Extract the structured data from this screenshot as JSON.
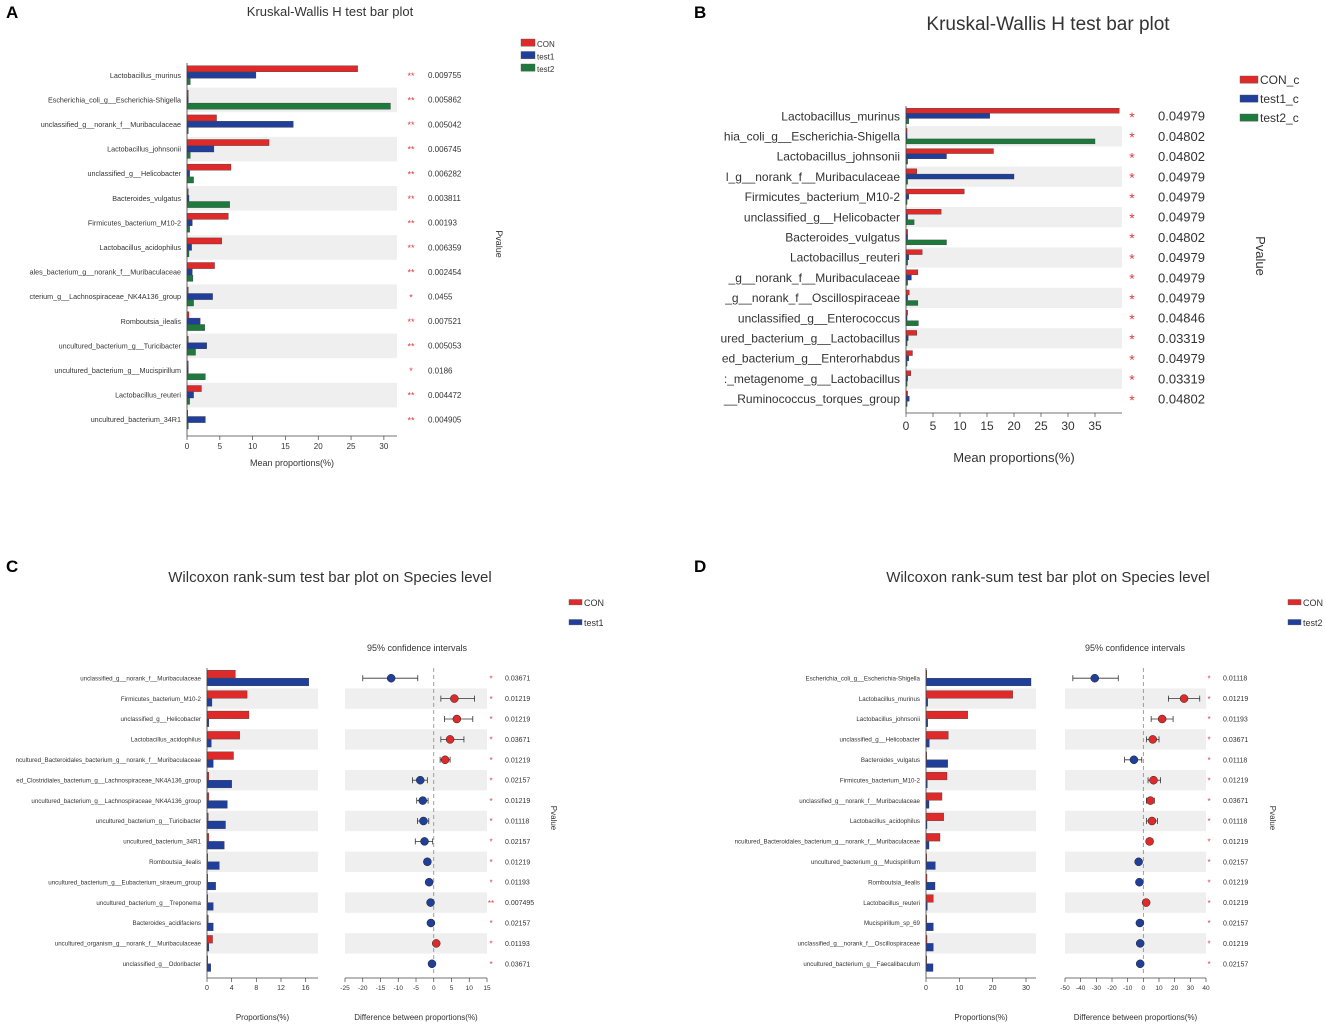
{
  "colors": {
    "CON": "#e02a2a",
    "test1": "#1f3f9a",
    "test2": "#1e7a3c",
    "stripe": "#efefef",
    "sig": "#e23a3a"
  },
  "chart_data": [
    {
      "panel": "A",
      "type": "bar",
      "title": "Kruskal-Wallis H test bar plot",
      "xlabel": "Mean proportions(%)",
      "pvalue_label": "Pvalue",
      "xlim": [
        0,
        32
      ],
      "xticks": [
        0,
        5,
        10,
        15,
        20,
        25,
        30
      ],
      "series_names": [
        "CON",
        "test1",
        "test2"
      ],
      "categories": [
        "Lactobacillus_murinus",
        "Escherichia_coli_g__Escherichia-Shigella",
        "unclassified_g__norank_f__Muribaculaceae",
        "Lactobacillus_johnsonii",
        "unclassified_g__Helicobacter",
        "Bacteroides_vulgatus",
        "Firmicutes_bacterium_M10-2",
        "Lactobacillus_acidophilus",
        "ales_bacterium_g__norank_f__Muribaculaceae",
        "cterium_g__Lachnospiraceae_NK4A136_group",
        "Romboutsia_ilealis",
        "uncultured_bacterium_g__Turicibacter",
        "uncultured_bacterium_g__Mucispirillum",
        "Lactobacillus_reuteri",
        "uncultured_bacterium_34R1"
      ],
      "series": [
        {
          "name": "CON",
          "values": [
            26,
            0.2,
            4.5,
            12.5,
            6.7,
            0.2,
            6.3,
            5.3,
            4.2,
            0.2,
            0.3,
            0.2,
            0.2,
            2.2,
            0.1
          ]
        },
        {
          "name": "test1",
          "values": [
            10.5,
            0.2,
            16.2,
            4.1,
            0.4,
            0.3,
            0.8,
            0.7,
            0.8,
            3.9,
            2.0,
            3.0,
            0.2,
            1.0,
            2.8
          ]
        },
        {
          "name": "test2",
          "values": [
            0.5,
            31,
            0.2,
            0.5,
            1.0,
            6.5,
            0.4,
            0.3,
            0.9,
            1.0,
            2.7,
            1.3,
            2.8,
            0.4,
            0.2
          ]
        }
      ],
      "sig": [
        "**",
        "**",
        "**",
        "**",
        "**",
        "**",
        "**",
        "**",
        "**",
        "*",
        "**",
        "**",
        "*",
        "**",
        "**"
      ],
      "pvalues": [
        "0.009755",
        "0.005862",
        "0.005042",
        "0.006745",
        "0.006282",
        "0.003811",
        "0.00193",
        "0.006359",
        "0.002454",
        "0.0455",
        "0.007521",
        "0.005053",
        "0.0186",
        "0.004472",
        "0.004905"
      ]
    },
    {
      "panel": "B",
      "type": "bar",
      "title": "Kruskal-Wallis H test bar plot",
      "xlabel": "Mean proportions(%)",
      "pvalue_label": "Pvalue",
      "xlim": [
        0,
        40
      ],
      "xticks": [
        0,
        5,
        10,
        15,
        20,
        25,
        30,
        35
      ],
      "series_names": [
        "CON_c",
        "test1_c",
        "test2_c"
      ],
      "categories": [
        "Lactobacillus_murinus",
        "hia_coli_g__Escherichia-Shigella",
        "Lactobacillus_johnsonii",
        "l_g__norank_f__Muribaculaceae",
        "Firmicutes_bacterium_M10-2",
        "unclassified_g__Helicobacter",
        "Bacteroides_vulgatus",
        "Lactobacillus_reuteri",
        "_g__norank_f__Muribaculaceae",
        "_g__norank_f__Oscillospiraceae",
        "unclassified_g__Enterococcus",
        "ured_bacterium_g__Lactobacillus",
        "ed_bacterium_g__Enterorhabdus",
        ":_metagenome_g__Lactobacillus",
        "__Ruminococcus_torques_group"
      ],
      "series": [
        {
          "name": "CON_c",
          "values": [
            39.5,
            0.2,
            16.2,
            2.0,
            10.8,
            6.5,
            0.3,
            3.0,
            2.2,
            0.6,
            0.3,
            2.0,
            1.2,
            0.9,
            0.3
          ]
        },
        {
          "name": "test1_c",
          "values": [
            15.5,
            0.2,
            7.5,
            20.0,
            0.5,
            0.3,
            0.3,
            0.5,
            1.0,
            0.3,
            0.2,
            0.4,
            0.5,
            0.3,
            0.6
          ]
        },
        {
          "name": "test2_c",
          "values": [
            0.5,
            35.0,
            0.3,
            0.3,
            0.2,
            1.5,
            7.5,
            0.3,
            0.3,
            2.2,
            2.3,
            0.2,
            0.2,
            0.2,
            0.2
          ]
        }
      ],
      "sig": [
        "*",
        "*",
        "*",
        "*",
        "*",
        "*",
        "*",
        "*",
        "*",
        "*",
        "*",
        "*",
        "*",
        "*",
        "*"
      ],
      "pvalues": [
        "0.04979",
        "0.04802",
        "0.04802",
        "0.04979",
        "0.04979",
        "0.04979",
        "0.04802",
        "0.04979",
        "0.04979",
        "0.04979",
        "0.04846",
        "0.03319",
        "0.04979",
        "0.03319",
        "0.04802"
      ]
    },
    {
      "panel": "C",
      "type": "bar",
      "title": "Wilcoxon rank-sum test bar plot on Species level",
      "xlabel": "Proportions(%)",
      "ci_title": "95% confidence intervals",
      "ci_xlabel": "Difference between proportions(%)",
      "pvalue_label": "Pvalue",
      "xlim": [
        0,
        18
      ],
      "xticks": [
        0,
        4,
        8,
        12,
        16
      ],
      "xtick_labels": [
        "0",
        "4",
        "8",
        "12",
        "16"
      ],
      "ci_xlim": [
        -25,
        15
      ],
      "ci_xticks": [
        -25,
        -20,
        -15,
        -10,
        -5,
        0,
        5,
        10,
        15
      ],
      "series_names": [
        "CON",
        "test1"
      ],
      "categories": [
        "unclassified_g__norank_f__Muribaculaceae",
        "Firmicutes_bacterium_M10-2",
        "unclassified_g__Helicobacter",
        "Lactobacillus_acidophilus",
        "ncultured_Bacteroidales_bacterium_g__norank_f__Muribaculaceae",
        "ed_Clostridiales_bacterium_g__Lachnospiraceae_NK4A136_group",
        "uncultured_bacterium_g__Lachnospiraceae_NK4A136_group",
        "uncultured_bacterium_g__Turicibacter",
        "uncultured_bacterium_34R1",
        "Romboutsia_ilealis",
        "uncultured_bacterium_g__Eubacterium_siraeum_group",
        "uncultured_bacterium_g__Treponema",
        "Bacteroides_acidifaciens",
        "uncultured_organism_g__norank_f__Muribaculaceae",
        "unclassified_g__Odoribacter"
      ],
      "series": [
        {
          "name": "CON",
          "values": [
            4.6,
            6.5,
            6.8,
            5.3,
            4.3,
            0.3,
            0.3,
            0.2,
            0.3,
            0.1,
            0.1,
            0.1,
            0.2,
            0.9,
            0.1
          ]
        },
        {
          "name": "test1",
          "values": [
            16.5,
            0.8,
            0.3,
            0.7,
            1.0,
            4.0,
            3.3,
            3.0,
            2.8,
            2.0,
            1.4,
            1.0,
            1.0,
            0.3,
            0.6
          ]
        }
      ],
      "diff": [
        -12.0,
        5.8,
        6.5,
        4.6,
        3.2,
        -3.8,
        -3.1,
        -2.9,
        -2.6,
        -1.8,
        -1.3,
        -0.9,
        -0.8,
        0.7,
        -0.5
      ],
      "ci_low": [
        -20.0,
        2.0,
        3.0,
        2.0,
        1.8,
        -6.0,
        -4.8,
        -4.6,
        -5.2,
        -2.6,
        -2.1,
        -1.5,
        -1.4,
        0.2,
        -0.9
      ],
      "ci_high": [
        -4.5,
        11.5,
        11.0,
        8.5,
        4.6,
        -1.8,
        -1.6,
        -1.4,
        -0.3,
        -1.0,
        -0.5,
        -0.3,
        -0.2,
        1.2,
        -0.1
      ],
      "sig": [
        "*",
        "*",
        "*",
        "*",
        "*",
        "*",
        "*",
        "*",
        "*",
        "*",
        "*",
        "**",
        "*",
        "*",
        "*"
      ],
      "pvalues": [
        "0.03671",
        "0.01219",
        "0.01219",
        "0.03671",
        "0.01219",
        "0.02157",
        "0.01219",
        "0.01118",
        "0.02157",
        "0.01219",
        "0.01193",
        "0.007495",
        "0.02157",
        "0.01193",
        "0.03671"
      ]
    },
    {
      "panel": "D",
      "type": "bar",
      "title": "Wilcoxon rank-sum test bar plot on Species level",
      "xlabel": "Proportions(%)",
      "ci_title": "95% confidence intervals",
      "ci_xlabel": "Difference between proportions(%)",
      "pvalue_label": "Pvalue",
      "xlim": [
        0,
        33
      ],
      "xticks": [
        0,
        10,
        20,
        30
      ],
      "xtick_labels": [
        "0",
        "10",
        "20",
        "30"
      ],
      "ci_xlim": [
        -50,
        40
      ],
      "ci_xticks": [
        -50,
        -40,
        -30,
        -20,
        -10,
        0,
        10,
        20,
        30,
        40
      ],
      "series_names": [
        "CON",
        "test2"
      ],
      "categories": [
        "Escherichia_coli_g__Escherichia-Shigella",
        "Lactobacillus_murinus",
        "Lactobacillus_johnsonii",
        "unclassified_g__Helicobacter",
        "Bacteroides_vulgatus",
        "Firmicutes_bacterium_M10-2",
        "unclassified_g__norank_f__Muribaculaceae",
        "Lactobacillus_acidophilus",
        "ncultured_Bacteroidales_bacterium_g__norank_f__Muribaculaceae",
        "uncultured_bacterium_g__Mucispirillum",
        "Romboutsia_ilealis",
        "Lactobacillus_reuteri",
        "Mucispirillum_sp_69",
        "unclassified_g__norank_f__Oscillospiraceae",
        "uncultured_bacterium_g__Faecalibaculum"
      ],
      "series": [
        {
          "name": "CON",
          "values": [
            0.2,
            26.0,
            12.5,
            6.7,
            0.2,
            6.3,
            4.8,
            5.3,
            4.2,
            0.2,
            0.3,
            2.2,
            0.1,
            0.3,
            0.1
          ]
        },
        {
          "name": "test2",
          "values": [
            31.5,
            0.5,
            0.5,
            1.0,
            6.5,
            0.4,
            0.9,
            0.3,
            0.9,
            2.8,
            2.7,
            0.4,
            2.2,
            2.2,
            2.1
          ]
        }
      ],
      "diff": [
        -31.0,
        26.0,
        12.0,
        6.0,
        -6.0,
        6.5,
        4.5,
        5.5,
        4.0,
        -3.0,
        -2.5,
        1.8,
        -2.2,
        -2.0,
        -2.0
      ],
      "ci_low": [
        -45.0,
        16.0,
        5.0,
        2.0,
        -12.0,
        3.0,
        2.0,
        2.0,
        2.2,
        -4.2,
        -3.5,
        0.8,
        -3.2,
        -3.0,
        -2.8
      ],
      "ci_high": [
        -16.0,
        36.0,
        19.0,
        10.0,
        -1.0,
        11.0,
        7.0,
        9.0,
        6.0,
        -1.8,
        -1.5,
        2.8,
        -1.2,
        -1.0,
        -1.2
      ],
      "sig": [
        "*",
        "*",
        "*",
        "*",
        "*",
        "*",
        "*",
        "*",
        "*",
        "*",
        "*",
        "*",
        "*",
        "*",
        "*"
      ],
      "pvalues": [
        "0.01118",
        "0.01219",
        "0.01193",
        "0.03671",
        "0.01118",
        "0.01219",
        "0.03671",
        "0.01118",
        "0.01219",
        "0.02157",
        "0.01219",
        "0.01219",
        "0.02157",
        "0.01219",
        "0.02157"
      ]
    }
  ]
}
